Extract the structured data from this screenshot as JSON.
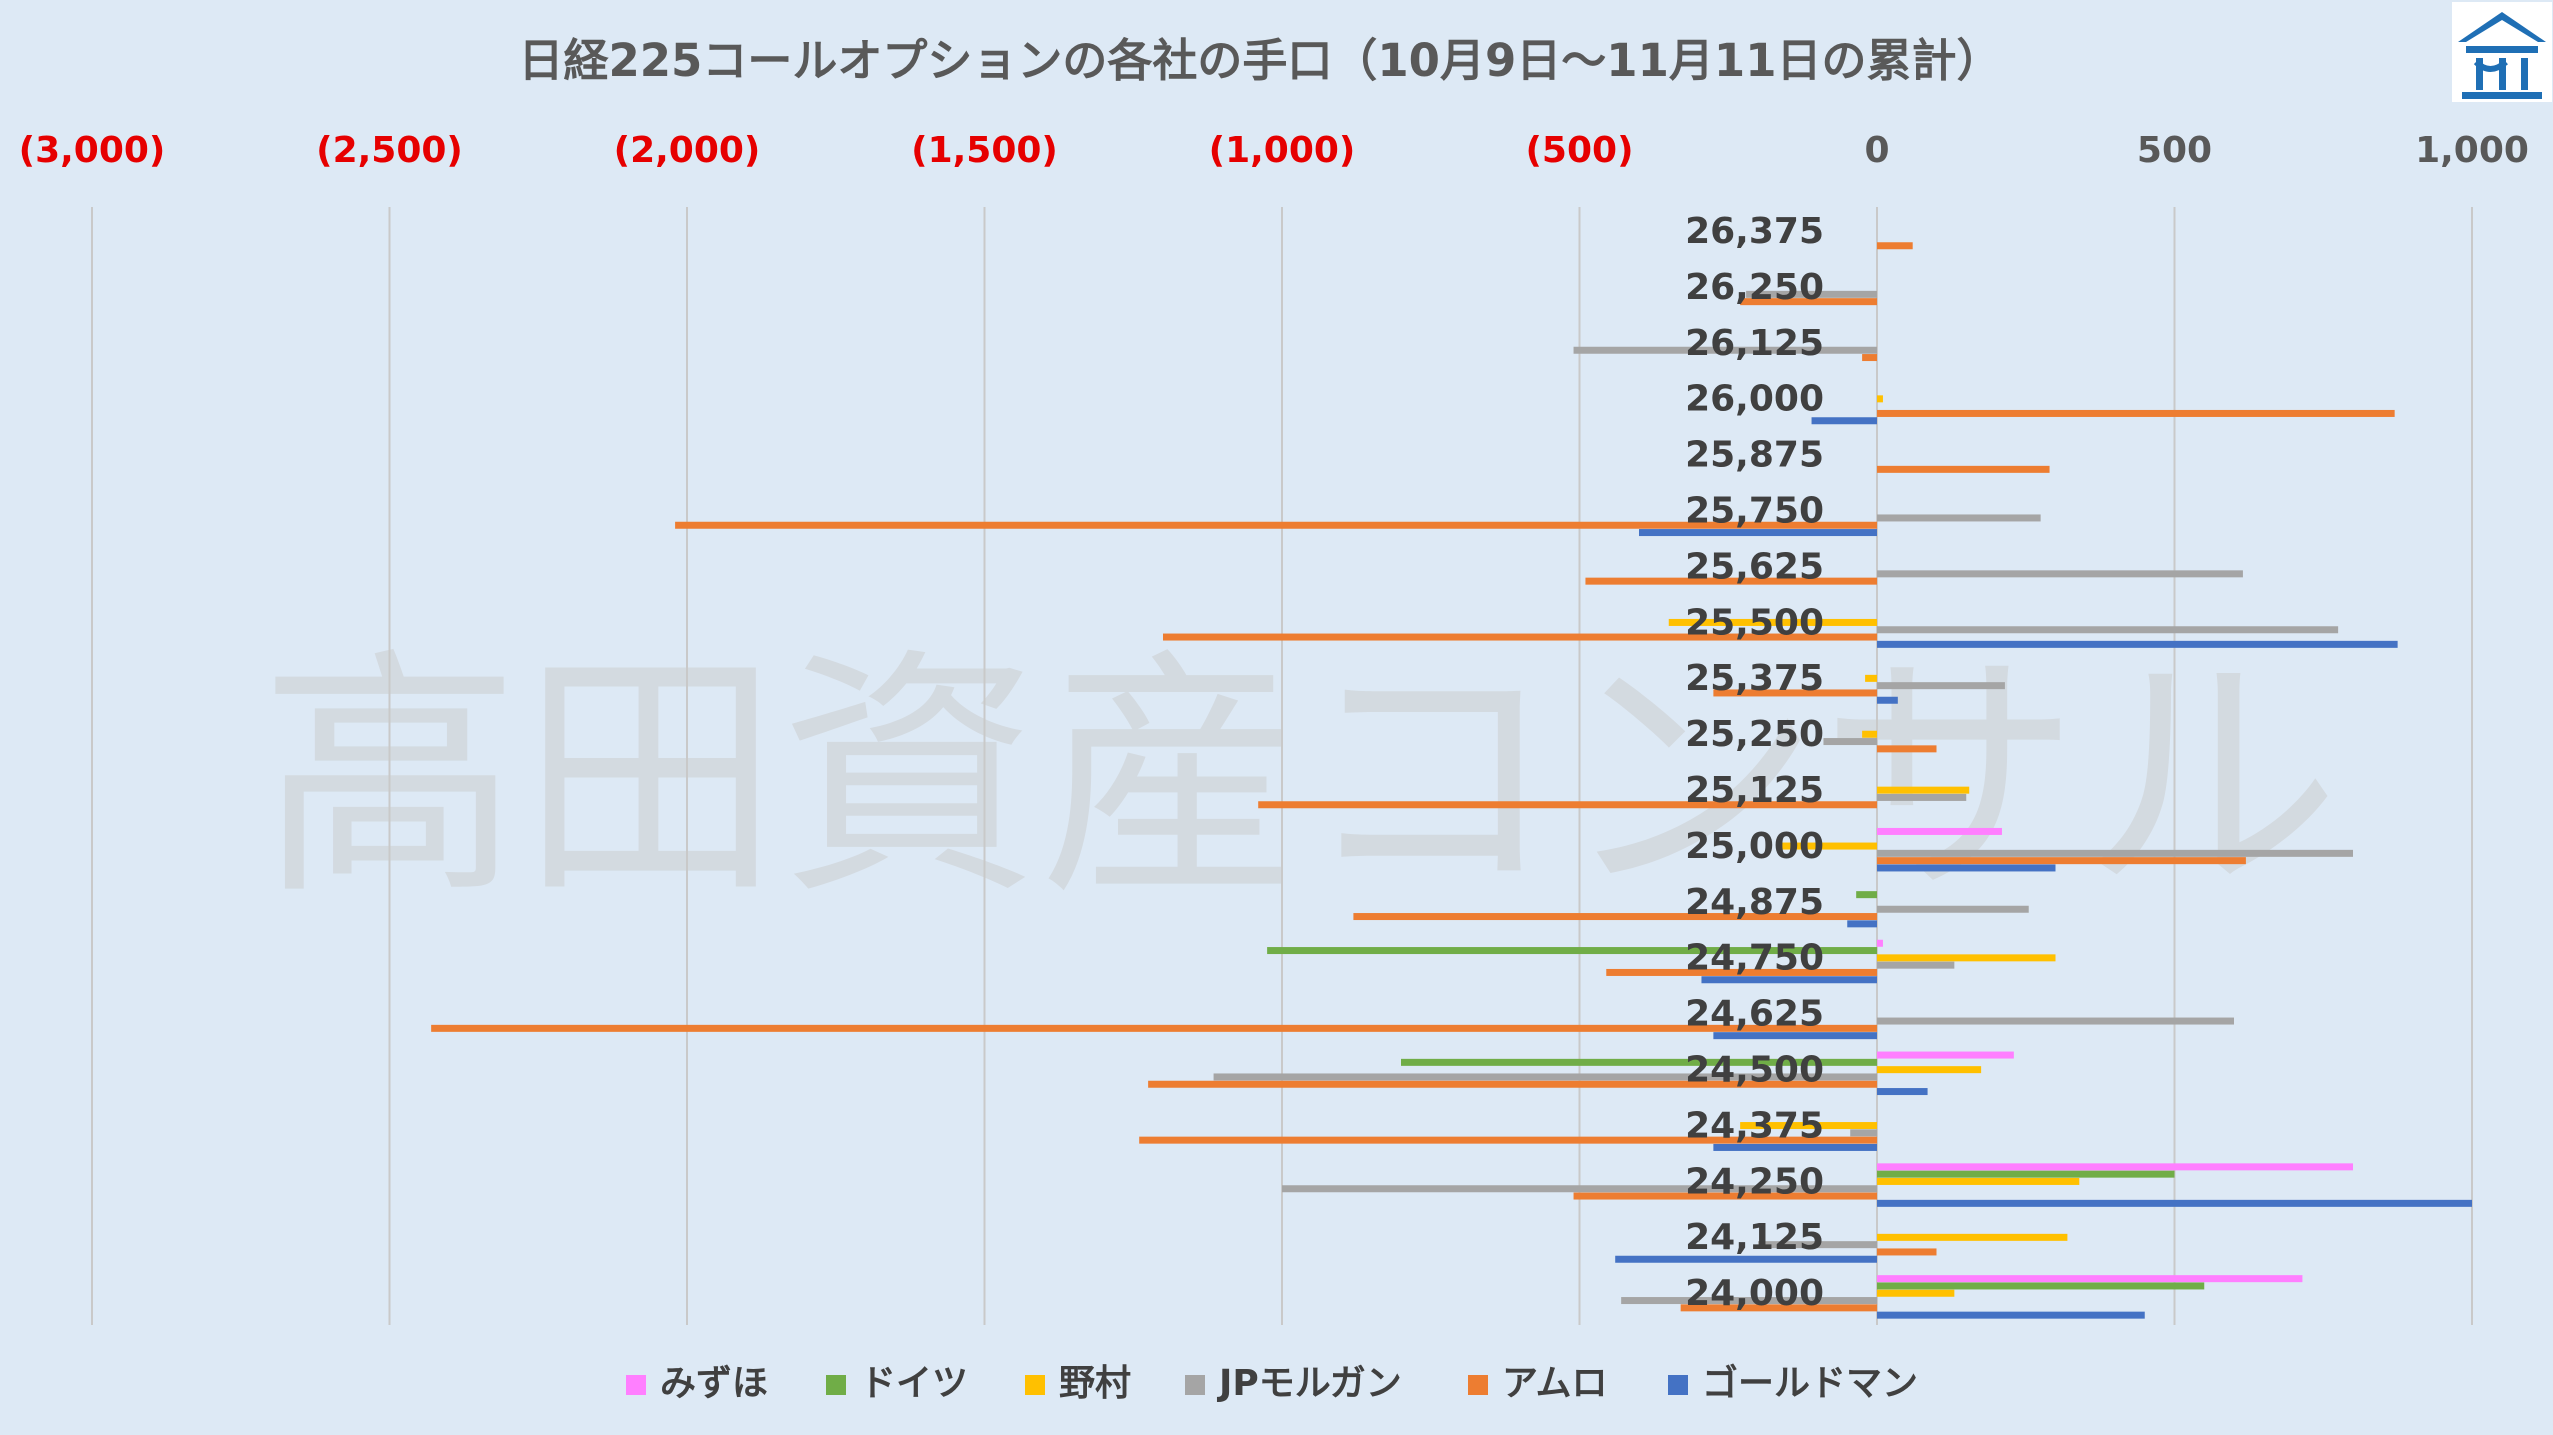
{
  "chart_data": {
    "type": "bar",
    "orientation": "horizontal",
    "title": "日経225コールオプションの各社の手口（10月9日～11月11日の累計）",
    "watermark": "高田資産コンサル",
    "xlim": [
      -3000,
      1000
    ],
    "x_ticks": [
      "(3,000)",
      "(2,500)",
      "(2,000)",
      "(1,500)",
      "(1,000)",
      "(500)",
      "0",
      "500",
      "1,000"
    ],
    "x_tick_values": [
      -3000,
      -2500,
      -2000,
      -1500,
      -1000,
      -500,
      0,
      500,
      1000
    ],
    "x_axis_position": "top",
    "grid": "vertical",
    "legend_position": "bottom",
    "categories": [
      "26,375",
      "26,250",
      "26,125",
      "26,000",
      "25,875",
      "25,750",
      "25,625",
      "25,500",
      "25,375",
      "25,250",
      "25,125",
      "25,000",
      "24,875",
      "24,750",
      "24,625",
      "24,500",
      "24,375",
      "24,250",
      "24,125",
      "24,000"
    ],
    "series": [
      {
        "name": "みずほ",
        "color": "#ff7fff",
        "values": [
          0,
          0,
          0,
          0,
          0,
          0,
          0,
          0,
          0,
          0,
          0,
          210,
          0,
          10,
          0,
          230,
          0,
          800,
          0,
          715
        ]
      },
      {
        "name": "ドイツ",
        "color": "#70ad47",
        "values": [
          0,
          0,
          0,
          0,
          0,
          0,
          0,
          0,
          0,
          0,
          0,
          0,
          -35,
          -1025,
          0,
          -800,
          0,
          500,
          0,
          550
        ]
      },
      {
        "name": "野村",
        "color": "#ffc000",
        "values": [
          0,
          0,
          0,
          10,
          0,
          0,
          0,
          -350,
          -20,
          -25,
          155,
          -165,
          0,
          300,
          0,
          175,
          -230,
          340,
          320,
          130
        ]
      },
      {
        "name": "JPモルガン",
        "color": "#a5a5a5",
        "values": [
          0,
          -220,
          -510,
          0,
          0,
          275,
          615,
          775,
          215,
          -90,
          150,
          800,
          255,
          130,
          600,
          -1115,
          -45,
          -1000,
          -200,
          -430
        ]
      },
      {
        "name": "アムロ",
        "color": "#ed7d31",
        "values": [
          60,
          -230,
          -25,
          870,
          290,
          -2020,
          -490,
          -1200,
          -275,
          100,
          -1040,
          620,
          -880,
          -455,
          -2430,
          -1225,
          -1240,
          -510,
          100,
          -330
        ]
      },
      {
        "name": "ゴールドマン",
        "color": "#4472c4",
        "values": [
          0,
          0,
          0,
          -110,
          0,
          -400,
          0,
          875,
          35,
          0,
          0,
          300,
          -50,
          -295,
          -275,
          85,
          -275,
          1000,
          -440,
          450
        ]
      }
    ]
  }
}
